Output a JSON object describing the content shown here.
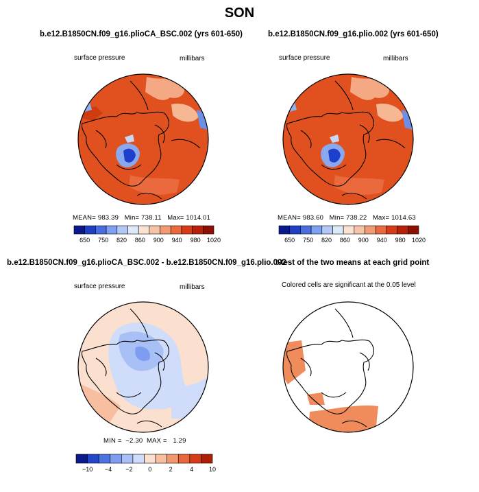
{
  "figure": {
    "title": "SON"
  },
  "chart_data": [
    {
      "type": "heatmap",
      "panel": "top-left",
      "projection": "polar stereographic, North Pole",
      "title": "b.e12.B1850CN.f09_g16.plioCA_BSC.002 (yrs 601-650)",
      "left_label": "surface pressure",
      "right_label": "millibars",
      "stats": {
        "mean_label": "MEAN=",
        "mean": "983.39",
        "min_label": "Min=",
        "min": "738.11",
        "max_label": "Max=",
        "max": "1014.01"
      },
      "colorbar": {
        "tick_labels": [
          "650",
          "750",
          "820",
          "860",
          "900",
          "940",
          "980",
          "1020"
        ],
        "colors": [
          "#0a1a8c",
          "#1f3fc4",
          "#4a6de0",
          "#7f9ff0",
          "#b3c8f5",
          "#ddeafa",
          "#fbe3d3",
          "#f7c3a6",
          "#f29a73",
          "#ea6a3e",
          "#d83c16",
          "#b82208",
          "#8e1004"
        ]
      }
    },
    {
      "type": "heatmap",
      "panel": "top-right",
      "projection": "polar stereographic, North Pole",
      "title": "b.e12.B1850CN.f09_g16.plio.002 (yrs 601-650)",
      "left_label": "surface pressure",
      "right_label": "millibars",
      "stats": {
        "mean_label": "MEAN=",
        "mean": "983.60",
        "min_label": "Min=",
        "min": "738.22",
        "max_label": "Max=",
        "max": "1014.63"
      },
      "colorbar": {
        "tick_labels": [
          "650",
          "750",
          "820",
          "860",
          "900",
          "940",
          "980",
          "1020"
        ],
        "colors": [
          "#0a1a8c",
          "#1f3fc4",
          "#4a6de0",
          "#7f9ff0",
          "#b3c8f5",
          "#ddeafa",
          "#fbe3d3",
          "#f7c3a6",
          "#f29a73",
          "#ea6a3e",
          "#d83c16",
          "#b82208",
          "#8e1004"
        ]
      }
    },
    {
      "type": "heatmap",
      "panel": "bottom-left",
      "projection": "polar stereographic, North Pole",
      "title": "b.e12.B1850CN.f09_g16.plioCA_BSC.002 - b.e12.B1850CN.f09_g16.plio.002",
      "left_label": "surface pressure",
      "right_label": "millibars",
      "stats": {
        "min_label": "MIN =",
        "min": "−2.30",
        "max_label": "MAX =",
        "max": "1.29"
      },
      "colorbar": {
        "tick_labels": [
          "−10",
          "−4",
          "−2",
          "0",
          "2",
          "4",
          "10"
        ],
        "colors": [
          "#0a1a8c",
          "#2446c8",
          "#4d72e2",
          "#7e9df0",
          "#a9c0f6",
          "#cfdcfa",
          "#fbe0cf",
          "#f7bfa0",
          "#f2966c",
          "#e9683b",
          "#d63c16",
          "#ad1e07"
        ]
      }
    },
    {
      "type": "heatmap",
      "panel": "bottom-right",
      "projection": "polar stereographic, North Pole",
      "title": "t-test of the two means at each grid point",
      "subtitle": "Colored cells are significant at the 0.05 level"
    }
  ]
}
